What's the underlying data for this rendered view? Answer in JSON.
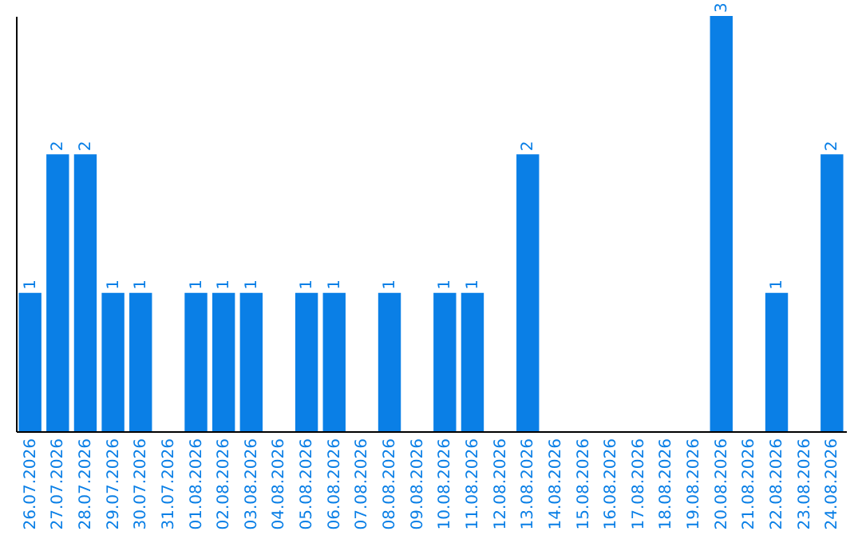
{
  "chart_data": {
    "type": "bar",
    "categories": [
      "26.07.2026",
      "27.07.2026",
      "28.07.2026",
      "29.07.2026",
      "30.07.2026",
      "31.07.2026",
      "01.08.2026",
      "02.08.2026",
      "03.08.2026",
      "04.08.2026",
      "05.08.2026",
      "06.08.2026",
      "07.08.2026",
      "08.08.2026",
      "09.08.2026",
      "10.08.2026",
      "11.08.2026",
      "12.08.2026",
      "13.08.2026",
      "14.08.2026",
      "15.08.2026",
      "16.08.2026",
      "17.08.2026",
      "18.08.2026",
      "19.08.2026",
      "20.08.2026",
      "21.08.2026",
      "22.08.2026",
      "23.08.2026",
      "24.08.2026"
    ],
    "values": [
      1,
      2,
      2,
      1,
      1,
      null,
      1,
      1,
      1,
      null,
      1,
      1,
      null,
      1,
      null,
      1,
      1,
      null,
      2,
      null,
      null,
      null,
      null,
      null,
      null,
      3,
      null,
      1,
      null,
      2
    ],
    "color": "#0a7fe6",
    "data_labels": true
  }
}
